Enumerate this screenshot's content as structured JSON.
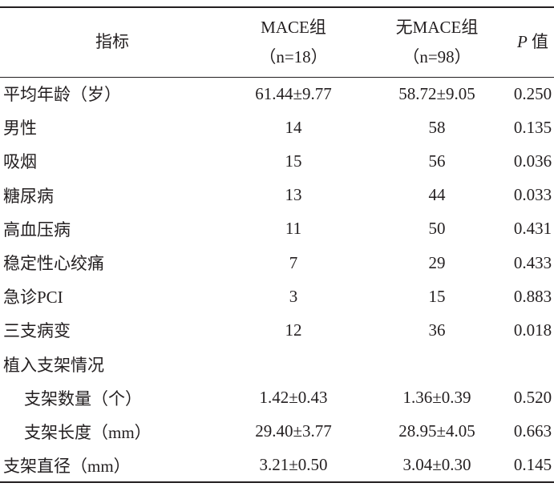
{
  "table": {
    "header": {
      "col0": "指标",
      "col1": [
        "MACE组",
        "（n=18）"
      ],
      "col2": [
        "无MACE组",
        "（n=98）"
      ],
      "col3": [
        "P",
        "值"
      ]
    },
    "rows": [
      [
        "平均年龄（岁）",
        "61.44±9.77",
        "58.72±9.05",
        "0.250"
      ],
      [
        "男性",
        "14",
        "58",
        "0.135"
      ],
      [
        "吸烟",
        "15",
        "56",
        "0.036"
      ],
      [
        "糖尿病",
        "13",
        "44",
        "0.033"
      ],
      [
        "高血压病",
        "11",
        "50",
        "0.431"
      ],
      [
        "稳定性心绞痛",
        "7",
        "29",
        "0.433"
      ],
      [
        "急诊PCI",
        "3",
        "15",
        "0.883"
      ],
      [
        "三支病变",
        "12",
        "36",
        "0.018"
      ],
      [
        "植入支架情况"
      ],
      [
        "支架数量（个）",
        "1.42±0.43",
        "1.36±0.39",
        "0.520"
      ],
      [
        "支架长度（mm）",
        "29.40±3.77",
        "28.95±4.05",
        "0.663"
      ],
      [
        "支架直径（mm）",
        "3.21±0.50",
        "3.04±0.30",
        "0.145"
      ]
    ]
  }
}
